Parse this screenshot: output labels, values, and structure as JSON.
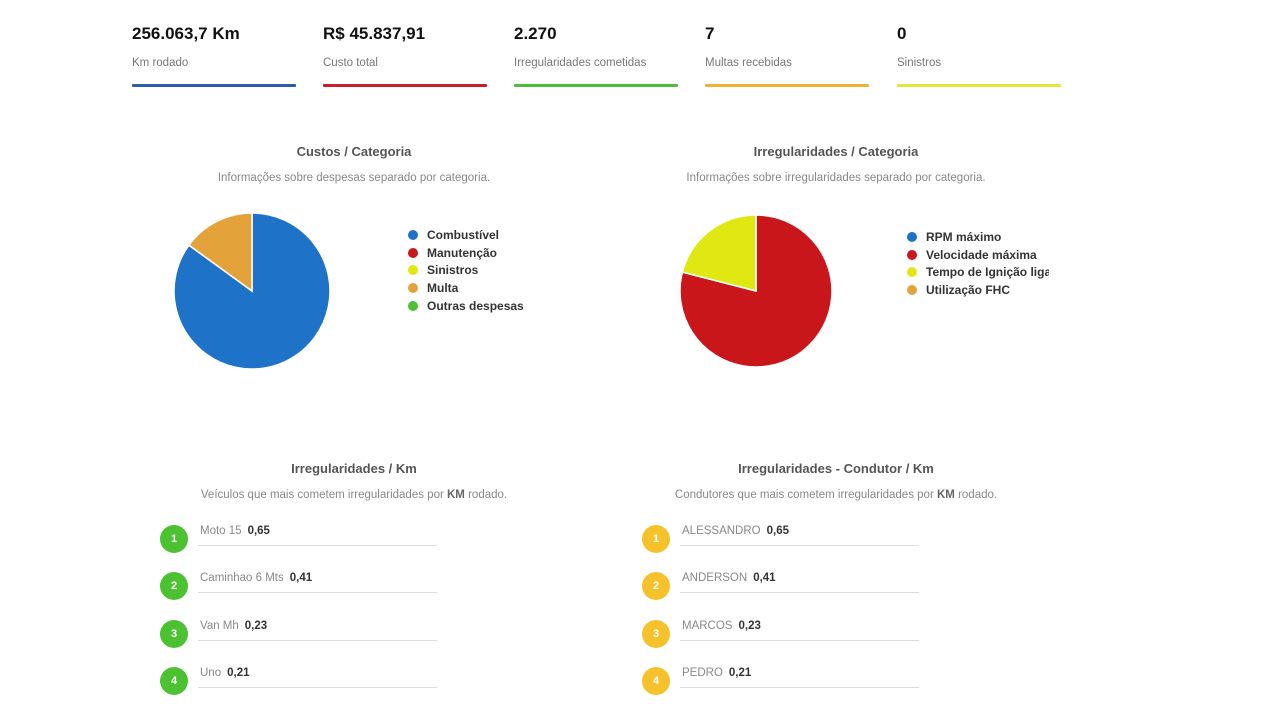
{
  "kpis": [
    {
      "value": "256.063,7 Km",
      "label": "Km rodado",
      "color": "#2a5ea8"
    },
    {
      "value": "R$ 45.837,91",
      "label": "Custo total",
      "color": "#c8202a"
    },
    {
      "value": "2.270",
      "label": "Irregularidades cometidas",
      "color": "#4cbf3a"
    },
    {
      "value": "7",
      "label": "Multas recebidas",
      "color": "#f2b134"
    },
    {
      "value": "0",
      "label": "Sinistros",
      "color": "#e6e63a"
    }
  ],
  "costs": {
    "title": "Custos / Categoria",
    "subtitle": "Informações sobre despesas separado por categoria.",
    "legend": [
      {
        "label": "Combustível",
        "color": "#1e73c8"
      },
      {
        "label": "Manutenção",
        "color": "#c8161b"
      },
      {
        "label": "Sinistros",
        "color": "#dfe812"
      },
      {
        "label": "Multa",
        "color": "#e4a33a"
      },
      {
        "label": "Outras despesas",
        "color": "#4cc233"
      }
    ]
  },
  "irregularities": {
    "title": "Irregularidades / Categoria",
    "subtitle": "Informações sobre irregularidades separado por categoria.",
    "legend": [
      {
        "label": "RPM máximo",
        "color": "#1e73c8"
      },
      {
        "label": "Velocidade máxima",
        "color": "#c8161b"
      },
      {
        "label": "Tempo de Ignição ligado",
        "color": "#dfe812"
      },
      {
        "label": "Utilização FHC",
        "color": "#e4a33a"
      }
    ]
  },
  "chart_data": [
    {
      "type": "pie",
      "title": "Custos / Categoria",
      "categories": [
        "Combustível",
        "Manutenção",
        "Sinistros",
        "Multa",
        "Outras despesas"
      ],
      "values": [
        85,
        0,
        0,
        15,
        0
      ]
    },
    {
      "type": "pie",
      "title": "Irregularidades / Categoria",
      "categories": [
        "RPM máximo",
        "Velocidade máxima",
        "Tempo de Ignição ligado",
        "Utilização FHC"
      ],
      "values": [
        0,
        79,
        21,
        0
      ]
    }
  ],
  "vehicles": {
    "title": "Irregularidades / Km",
    "subtitle_pre": "Veículos que mais cometem irregularidades por",
    "subtitle_strong": "KM",
    "subtitle_post": "rodado.",
    "badge_color": "#4cc233",
    "items": [
      {
        "rank": "1",
        "name": "Moto 15",
        "value": "0,65"
      },
      {
        "rank": "2",
        "name": "Caminhao 6 Mts",
        "value": "0,41"
      },
      {
        "rank": "3",
        "name": "Van Mh",
        "value": "0,23"
      },
      {
        "rank": "4",
        "name": "Uno",
        "value": "0,21"
      }
    ]
  },
  "drivers": {
    "title": "Irregularidades - Condutor / Km",
    "subtitle_pre": "Condutores que mais cometem irregularidades por",
    "subtitle_strong": "KM",
    "subtitle_post": "rodado.",
    "badge_color": "#f5c22c",
    "items": [
      {
        "rank": "1",
        "name": "ALESSANDRO",
        "value": "0,65"
      },
      {
        "rank": "2",
        "name": "ANDERSON",
        "value": "0,41"
      },
      {
        "rank": "3",
        "name": "MARCOS",
        "value": "0,23"
      },
      {
        "rank": "4",
        "name": "PEDRO",
        "value": "0,21"
      }
    ]
  }
}
